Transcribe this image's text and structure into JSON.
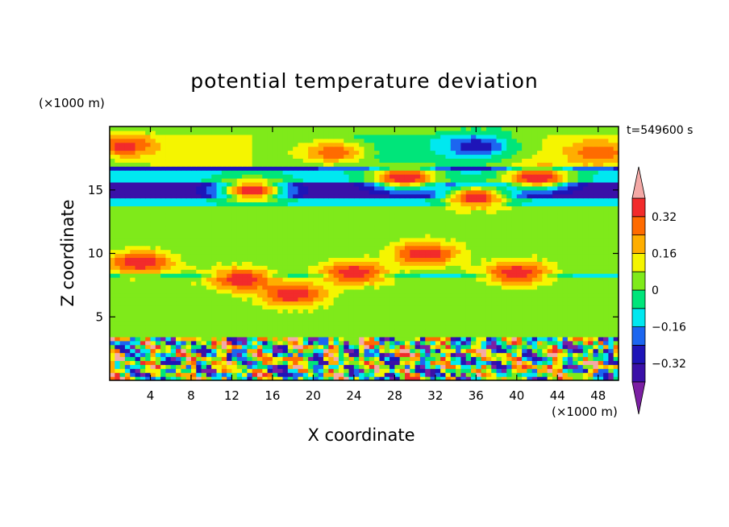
{
  "chart_data": {
    "type": "heatmap",
    "title": "potential temperature deviation",
    "xlabel": "X coordinate",
    "ylabel": "Z coordinate",
    "x_unit": "(×1000 m)",
    "y_unit": "(×1000 m)",
    "annotation": "t=549600 s",
    "xlim": [
      0,
      50
    ],
    "ylim": [
      0,
      20
    ],
    "x_ticks": [
      4,
      8,
      12,
      16,
      20,
      24,
      28,
      32,
      36,
      40,
      44,
      48
    ],
    "y_ticks": [
      5,
      10,
      15
    ],
    "colorbar": {
      "levels": [
        -0.4,
        -0.32,
        -0.24,
        -0.16,
        -0.08,
        0,
        0.08,
        0.16,
        0.24,
        0.32,
        0.4
      ],
      "tick_labels": [
        "0.32",
        "0.16",
        "0",
        "-0.16",
        "-0.32"
      ],
      "tick_values": [
        0.32,
        0.16,
        0,
        -0.16,
        -0.32
      ],
      "colors_low_to_high": [
        "#7b1fa3",
        "#3a10a8",
        "#1e14b8",
        "#1c66f0",
        "#00e8f0",
        "#00e57a",
        "#7fea1a",
        "#f5f500",
        "#ffae00",
        "#ff6b00",
        "#f22b2b",
        "#f4a9a6"
      ],
      "extend": "both"
    },
    "background_level": 0.04,
    "layers": [
      {
        "z_range": [
          17,
          19.5
        ],
        "value": 0.06
      },
      {
        "z_range": [
          16.6,
          17
        ],
        "value": -0.3
      },
      {
        "z_range": [
          15.7,
          16.6
        ],
        "value": -0.1
      },
      {
        "z_range": [
          14.4,
          15.6
        ],
        "value": -0.36
      },
      {
        "z_range": [
          13.8,
          14.4
        ],
        "value": -0.12
      },
      {
        "z_range": [
          8.0,
          8.4
        ],
        "value": -0.1
      },
      {
        "z_range": [
          0,
          3.5
        ],
        "value": "turbulent, -0.4 to 0.4"
      }
    ],
    "features": [
      {
        "x": 1.5,
        "z": 18.5,
        "value": 0.36
      },
      {
        "x": 22,
        "z": 18,
        "value": 0.3
      },
      {
        "x": 48,
        "z": 18,
        "value": 0.3
      },
      {
        "x": 42,
        "z": 16,
        "value": 0.4
      },
      {
        "x": 36,
        "z": 14.5,
        "value": 0.4
      },
      {
        "x": 14,
        "z": 15,
        "value": 0.4
      },
      {
        "x": 29,
        "z": 16,
        "value": 0.4
      },
      {
        "x": 36,
        "z": 18.5,
        "value": -0.3
      },
      {
        "x": 31,
        "z": 10,
        "value": 0.4
      },
      {
        "x": 24,
        "z": 8.5,
        "value": 0.4
      },
      {
        "x": 3,
        "z": 9.3,
        "value": 0.4
      },
      {
        "x": 13,
        "z": 8,
        "value": 0.4
      },
      {
        "x": 18,
        "z": 6.8,
        "value": 0.4
      },
      {
        "x": 40,
        "z": 8.5,
        "value": 0.4
      }
    ]
  }
}
